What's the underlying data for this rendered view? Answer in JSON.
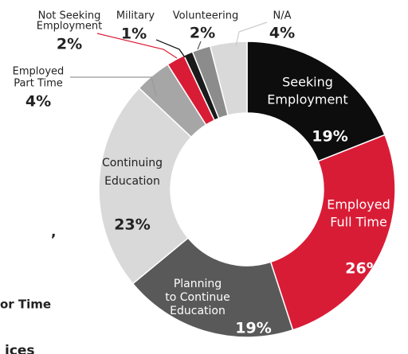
{
  "chart_data": {
    "type": "donut",
    "categories": [
      [
        "Seeking",
        "Employment"
      ],
      [
        "Employed",
        "Full Time"
      ],
      [
        "Planning",
        "to Continue",
        "Education"
      ],
      [
        "Continuing",
        "Education"
      ],
      [
        "Employed",
        "Part Time"
      ],
      [
        "Not Seeking",
        "Employment"
      ],
      [
        "Military"
      ],
      [
        "Volunteering"
      ],
      [
        "N/A"
      ]
    ],
    "values": [
      19,
      26,
      19,
      23,
      4,
      2,
      1,
      2,
      4
    ],
    "value_labels": [
      "19%",
      "26%",
      "19%",
      "23%",
      "4%",
      "2%",
      "1%",
      "2%",
      "4%"
    ],
    "colors": [
      "#0d0d0d",
      "#d91c36",
      "#595959",
      "#d9d9d9",
      "#a6a6a6",
      "#d91c36",
      "#1a1a1a",
      "#8c8c8c",
      "#d9d9d9"
    ],
    "background_text": [
      ",",
      "or Time",
      "ices"
    ]
  }
}
